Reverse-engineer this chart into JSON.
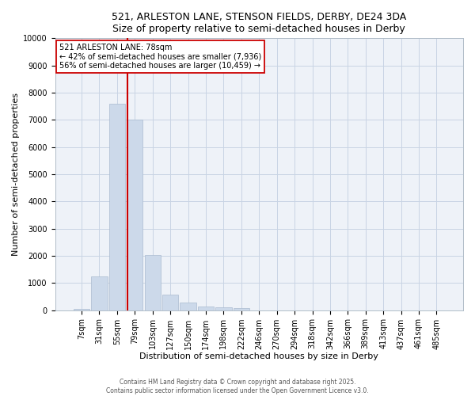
{
  "title_line1": "521, ARLESTON LANE, STENSON FIELDS, DERBY, DE24 3DA",
  "title_line2": "Size of property relative to semi-detached houses in Derby",
  "xlabel": "Distribution of semi-detached houses by size in Derby",
  "ylabel": "Number of semi-detached properties",
  "footer_line1": "Contains HM Land Registry data © Crown copyright and database right 2025.",
  "footer_line2": "Contains public sector information licensed under the Open Government Licence v3.0.",
  "annotation_line1": "521 ARLESTON LANE: 78sqm",
  "annotation_line2": "← 42% of semi-detached houses are smaller (7,936)",
  "annotation_line3": "56% of semi-detached houses are larger (10,459) →",
  "bar_color": "#ccd9ea",
  "bar_edge_color": "#aabbd0",
  "grid_color": "#c8d4e4",
  "vline_color": "#cc0000",
  "annotation_box_edge": "#cc0000",
  "annotation_box_face": "#ffffff",
  "categories": [
    "7sqm",
    "31sqm",
    "55sqm",
    "79sqm",
    "103sqm",
    "127sqm",
    "150sqm",
    "174sqm",
    "198sqm",
    "222sqm",
    "246sqm",
    "270sqm",
    "294sqm",
    "318sqm",
    "342sqm",
    "366sqm",
    "389sqm",
    "413sqm",
    "437sqm",
    "461sqm",
    "485sqm"
  ],
  "values": [
    50,
    1230,
    7600,
    7020,
    2020,
    580,
    270,
    130,
    100,
    70,
    0,
    0,
    0,
    0,
    0,
    0,
    0,
    0,
    0,
    0,
    0
  ],
  "ylim": [
    0,
    10000
  ],
  "yticks": [
    0,
    1000,
    2000,
    3000,
    4000,
    5000,
    6000,
    7000,
    8000,
    9000,
    10000
  ],
  "vline_x_index": 2.58,
  "bg_color": "#ffffff",
  "ax_bg_color": "#eef2f8",
  "title_fontsize": 9,
  "axis_fontsize": 8,
  "tick_fontsize": 7
}
